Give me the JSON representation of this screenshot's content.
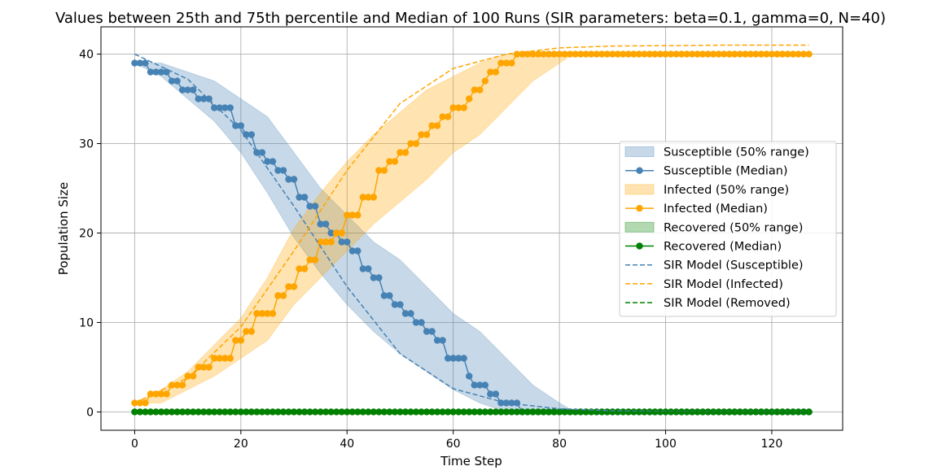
{
  "chart_data": {
    "type": "line",
    "title": "Values between 25th and 75th percentile and Median of 100 Runs (SIR parameters: beta=0.1, gamma=0, N=40)",
    "xlabel": "Time Step",
    "ylabel": "Population Size",
    "xlim": [
      -6.35,
      133.35
    ],
    "ylim": [
      -2.05,
      43.05
    ],
    "xticks": [
      0,
      20,
      40,
      60,
      80,
      100,
      120
    ],
    "yticks": [
      0,
      10,
      20,
      30,
      40
    ],
    "grid": true,
    "legend_position": "center-right",
    "legend": [
      {
        "label": "Susceptible (50% range)",
        "kind": "band",
        "color": "#4682b4"
      },
      {
        "label": "Susceptible (Median)",
        "kind": "marker-line",
        "color": "#4682b4"
      },
      {
        "label": "Infected (50% range)",
        "kind": "band",
        "color": "#ffa500"
      },
      {
        "label": "Infected (Median)",
        "kind": "marker-line",
        "color": "#ffa500"
      },
      {
        "label": "Recovered (50% range)",
        "kind": "band",
        "color": "#008000"
      },
      {
        "label": "Recovered (Median)",
        "kind": "marker-line",
        "color": "#008000"
      },
      {
        "label": "SIR Model (Susceptible)",
        "kind": "dashed",
        "color": "#4682b4"
      },
      {
        "label": "SIR Model (Infected)",
        "kind": "dashed",
        "color": "#ffa500"
      },
      {
        "label": "SIR Model (Removed)",
        "kind": "dashed",
        "color": "#008000"
      }
    ],
    "series": [
      {
        "name": "Susceptible (Median)",
        "kind": "median",
        "color": "#4682b4",
        "points": [
          [
            0,
            39
          ],
          [
            2,
            39
          ],
          [
            3,
            38
          ],
          [
            5,
            38
          ],
          [
            7,
            37
          ],
          [
            9,
            36
          ],
          [
            11,
            36
          ],
          [
            12,
            35
          ],
          [
            14,
            35
          ],
          [
            15,
            34
          ],
          [
            17,
            34
          ],
          [
            19,
            32
          ],
          [
            21,
            31
          ],
          [
            23,
            29
          ],
          [
            25,
            28
          ],
          [
            27,
            27
          ],
          [
            29,
            26
          ],
          [
            31,
            24
          ],
          [
            33,
            23
          ],
          [
            35,
            21
          ],
          [
            37,
            20
          ],
          [
            39,
            19
          ],
          [
            41,
            18
          ],
          [
            43,
            16
          ],
          [
            45,
            15
          ],
          [
            47,
            13
          ],
          [
            49,
            12
          ],
          [
            51,
            11
          ],
          [
            53,
            10
          ],
          [
            55,
            9
          ],
          [
            57,
            8
          ],
          [
            59,
            6
          ],
          [
            61,
            6
          ],
          [
            63,
            4
          ],
          [
            64,
            3
          ],
          [
            66,
            3
          ],
          [
            67,
            2
          ],
          [
            69,
            1
          ],
          [
            72,
            1
          ],
          [
            73,
            0
          ],
          [
            127,
            0
          ]
        ]
      },
      {
        "name": "Infected (Median)",
        "kind": "median",
        "color": "#ffa500",
        "points": [
          [
            0,
            1
          ],
          [
            2,
            1
          ],
          [
            3,
            2
          ],
          [
            5,
            2
          ],
          [
            7,
            3
          ],
          [
            9,
            3
          ],
          [
            10,
            4
          ],
          [
            12,
            5
          ],
          [
            14,
            5
          ],
          [
            15,
            6
          ],
          [
            17,
            6
          ],
          [
            19,
            8
          ],
          [
            21,
            9
          ],
          [
            23,
            11
          ],
          [
            25,
            11
          ],
          [
            27,
            13
          ],
          [
            29,
            14
          ],
          [
            31,
            16
          ],
          [
            33,
            17
          ],
          [
            35,
            19
          ],
          [
            37,
            19
          ],
          [
            38,
            20
          ],
          [
            40,
            22
          ],
          [
            41,
            22
          ],
          [
            43,
            24
          ],
          [
            44,
            24
          ],
          [
            46,
            27
          ],
          [
            48,
            28
          ],
          [
            50,
            29
          ],
          [
            52,
            30
          ],
          [
            54,
            31
          ],
          [
            56,
            32
          ],
          [
            58,
            33
          ],
          [
            60,
            34
          ],
          [
            61,
            34
          ],
          [
            63,
            35
          ],
          [
            64,
            36
          ],
          [
            66,
            37
          ],
          [
            67,
            38
          ],
          [
            69,
            39
          ],
          [
            71,
            39
          ],
          [
            72,
            40
          ],
          [
            127,
            40
          ]
        ]
      },
      {
        "name": "Recovered (Median)",
        "kind": "median",
        "color": "#008000",
        "points": [
          [
            0,
            0
          ],
          [
            127,
            0
          ]
        ]
      },
      {
        "name": "SIR Model (Susceptible)",
        "kind": "model",
        "color": "#4682b4",
        "points": [
          [
            0,
            40
          ],
          [
            10,
            37.2
          ],
          [
            20,
            31.5
          ],
          [
            30,
            23
          ],
          [
            35,
            18.5
          ],
          [
            40,
            14
          ],
          [
            50,
            6.5
          ],
          [
            60,
            2.6
          ],
          [
            70,
            1.0
          ],
          [
            80,
            0.35
          ],
          [
            90,
            0.12
          ],
          [
            100,
            0.05
          ],
          [
            110,
            0.02
          ],
          [
            127,
            0.01
          ]
        ]
      },
      {
        "name": "SIR Model (Infected)",
        "kind": "model",
        "color": "#ffa500",
        "points": [
          [
            0,
            1
          ],
          [
            10,
            3.8
          ],
          [
            20,
            9.5
          ],
          [
            30,
            18
          ],
          [
            35,
            22.5
          ],
          [
            40,
            27
          ],
          [
            50,
            34.5
          ],
          [
            60,
            38.4
          ],
          [
            70,
            40
          ],
          [
            80,
            40.7
          ],
          [
            90,
            40.9
          ],
          [
            100,
            40.95
          ],
          [
            110,
            41
          ],
          [
            127,
            41
          ]
        ]
      },
      {
        "name": "SIR Model (Removed)",
        "kind": "model",
        "color": "#008000",
        "points": [
          [
            0,
            0
          ],
          [
            127,
            0
          ]
        ]
      }
    ],
    "bands": [
      {
        "name": "Susceptible (50% range)",
        "color": "#4682b4",
        "upper": [
          [
            0,
            39
          ],
          [
            5,
            39
          ],
          [
            10,
            38
          ],
          [
            15,
            37
          ],
          [
            20,
            35
          ],
          [
            25,
            33
          ],
          [
            30,
            29
          ],
          [
            35,
            25
          ],
          [
            40,
            22
          ],
          [
            45,
            19
          ],
          [
            50,
            17
          ],
          [
            55,
            14
          ],
          [
            60,
            11
          ],
          [
            65,
            9
          ],
          [
            70,
            6
          ],
          [
            75,
            3
          ],
          [
            80,
            1
          ],
          [
            82,
            0.3
          ],
          [
            127,
            0
          ]
        ],
        "lower": [
          [
            0,
            39
          ],
          [
            5,
            37.5
          ],
          [
            10,
            35
          ],
          [
            15,
            32.5
          ],
          [
            20,
            29
          ],
          [
            25,
            24.5
          ],
          [
            30,
            19.5
          ],
          [
            35,
            15.5
          ],
          [
            40,
            12
          ],
          [
            45,
            9
          ],
          [
            50,
            6.5
          ],
          [
            55,
            4.5
          ],
          [
            60,
            2.5
          ],
          [
            65,
            1
          ],
          [
            70,
            0
          ],
          [
            127,
            0
          ]
        ]
      },
      {
        "name": "Infected (50% range)",
        "color": "#ffa500",
        "upper": [
          [
            0,
            1
          ],
          [
            5,
            2.5
          ],
          [
            10,
            4.5
          ],
          [
            15,
            7.5
          ],
          [
            20,
            10.5
          ],
          [
            25,
            15
          ],
          [
            30,
            20.5
          ],
          [
            35,
            24.5
          ],
          [
            40,
            28
          ],
          [
            45,
            31
          ],
          [
            50,
            33.5
          ],
          [
            55,
            36
          ],
          [
            60,
            37.5
          ],
          [
            65,
            39
          ],
          [
            70,
            40
          ],
          [
            127,
            40
          ]
        ],
        "lower": [
          [
            0,
            1
          ],
          [
            5,
            1
          ],
          [
            10,
            2.5
          ],
          [
            15,
            4
          ],
          [
            20,
            6
          ],
          [
            25,
            8
          ],
          [
            30,
            12
          ],
          [
            35,
            15
          ],
          [
            40,
            18
          ],
          [
            45,
            21
          ],
          [
            50,
            23.5
          ],
          [
            55,
            26
          ],
          [
            60,
            29
          ],
          [
            65,
            31
          ],
          [
            70,
            34
          ],
          [
            75,
            37
          ],
          [
            80,
            39
          ],
          [
            82,
            39.8
          ],
          [
            127,
            40
          ]
        ]
      },
      {
        "name": "Recovered (50% range)",
        "color": "#008000",
        "upper": [
          [
            0,
            0
          ],
          [
            127,
            0
          ]
        ],
        "lower": [
          [
            0,
            0
          ],
          [
            127,
            0
          ]
        ]
      }
    ]
  }
}
